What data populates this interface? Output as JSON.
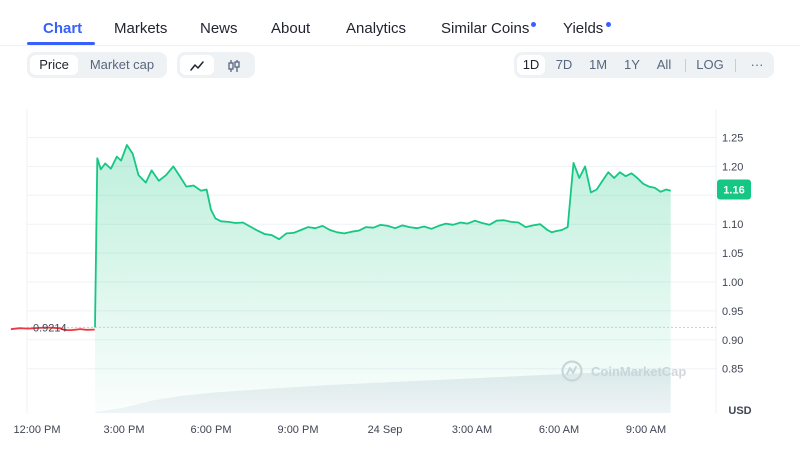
{
  "tabs": [
    {
      "label": "Chart",
      "active": true,
      "dot": false
    },
    {
      "label": "Markets",
      "active": false,
      "dot": false
    },
    {
      "label": "News",
      "active": false,
      "dot": false
    },
    {
      "label": "About",
      "active": false,
      "dot": false
    },
    {
      "label": "Analytics",
      "active": false,
      "dot": false
    },
    {
      "label": "Similar Coins",
      "active": false,
      "dot": true
    },
    {
      "label": "Yields",
      "active": false,
      "dot": true
    }
  ],
  "toolbar": {
    "metric_options": [
      "Price",
      "Market cap"
    ],
    "metric_selected": "Price",
    "chart_style_icons": [
      "line-chart-icon",
      "candlestick-icon"
    ],
    "chart_style_selected": "line-chart-icon",
    "ranges": [
      "1D",
      "7D",
      "1M",
      "1Y",
      "All"
    ],
    "range_selected": "1D",
    "log_label": "LOG",
    "more_label": "···"
  },
  "colors": {
    "accent": "#3861fb",
    "up": "#16c784",
    "down": "#ea3943",
    "grid": "#eff2f5"
  },
  "chart_data": {
    "type": "line",
    "open_price_label": "0.9214",
    "open_price": 0.9214,
    "current_price_label": "1.16",
    "current_price": 1.16,
    "currency_label": "USD",
    "watermark": "CoinMarketCap",
    "ylim": [
      0.8,
      1.28
    ],
    "y_ticks": [
      "1.25",
      "1.20",
      "1.15",
      "1.10",
      "1.05",
      "1.00",
      "0.95",
      "0.90",
      "0.85"
    ],
    "y_tick_values": [
      1.25,
      1.2,
      1.15,
      1.1,
      1.05,
      1.0,
      0.95,
      0.9,
      0.85
    ],
    "x_ticks": [
      "12:00 PM",
      "3:00 PM",
      "6:00 PM",
      "9:00 PM",
      "24 Sep",
      "3:00 AM",
      "6:00 AM",
      "9:00 AM"
    ],
    "x_tick_hours": [
      0,
      3,
      6,
      9,
      12,
      15,
      18,
      21
    ],
    "x_range_hours": [
      -1.6,
      21.85
    ],
    "series": [
      {
        "color": "down",
        "x": [
          -0.9,
          -0.6,
          -0.3,
          0.1,
          0.4,
          0.8,
          0.95,
          1.2,
          1.5,
          1.7,
          1.99
        ],
        "y": [
          0.9183,
          0.9201,
          0.9194,
          0.9206,
          0.9212,
          0.9199,
          0.9168,
          0.9168,
          0.9185,
          0.9172,
          0.9177
        ]
      },
      {
        "color": "up",
        "x": [
          2.0,
          2.08,
          2.2,
          2.35,
          2.55,
          2.75,
          2.9,
          3.1,
          3.3,
          3.5,
          3.75,
          3.95,
          4.2,
          4.45,
          4.7,
          4.9,
          5.15,
          5.4,
          5.65,
          5.85,
          6.0,
          6.15,
          6.35,
          6.6,
          6.85,
          7.1,
          7.35,
          7.6,
          7.85,
          8.1,
          8.35,
          8.6,
          8.85,
          9.1,
          9.35,
          9.6,
          9.85,
          10.1,
          10.35,
          10.6,
          10.85,
          11.1,
          11.35,
          11.6,
          11.85,
          12.1,
          12.35,
          12.6,
          12.85,
          13.1,
          13.35,
          13.6,
          13.85,
          14.1,
          14.35,
          14.6,
          14.85,
          15.1,
          15.35,
          15.6,
          15.85,
          16.1,
          16.35,
          16.6,
          16.85,
          17.1,
          17.35,
          17.6,
          17.75,
          17.9,
          18.1,
          18.3,
          18.5,
          18.7,
          18.9,
          19.1,
          19.3,
          19.5,
          19.7,
          19.9,
          20.1,
          20.3,
          20.5,
          20.7,
          20.9,
          21.1,
          21.3,
          21.5,
          21.7,
          21.85
        ],
        "y": [
          0.9214,
          1.214,
          1.195,
          1.205,
          1.196,
          1.217,
          1.21,
          1.237,
          1.222,
          1.185,
          1.172,
          1.193,
          1.175,
          1.185,
          1.2,
          1.185,
          1.165,
          1.167,
          1.158,
          1.16,
          1.125,
          1.11,
          1.105,
          1.104,
          1.102,
          1.103,
          1.096,
          1.089,
          1.083,
          1.081,
          1.074,
          1.084,
          1.085,
          1.09,
          1.095,
          1.093,
          1.097,
          1.09,
          1.086,
          1.084,
          1.087,
          1.089,
          1.095,
          1.094,
          1.099,
          1.097,
          1.093,
          1.098,
          1.095,
          1.093,
          1.096,
          1.092,
          1.097,
          1.101,
          1.099,
          1.103,
          1.101,
          1.106,
          1.102,
          1.099,
          1.106,
          1.107,
          1.104,
          1.103,
          1.095,
          1.098,
          1.1,
          1.09,
          1.086,
          1.088,
          1.09,
          1.095,
          1.206,
          1.18,
          1.2,
          1.155,
          1.16,
          1.175,
          1.19,
          1.18,
          1.19,
          1.183,
          1.188,
          1.18,
          1.17,
          1.165,
          1.163,
          1.156,
          1.16,
          1.158
        ]
      }
    ],
    "volume_profile": {
      "x": [
        2.0,
        3.0,
        4.0,
        5.0,
        6.0,
        8.0,
        10.0,
        12.0,
        14.0,
        16.0,
        18.0,
        20.0,
        21.85
      ],
      "v": [
        0.02,
        0.12,
        0.28,
        0.38,
        0.45,
        0.54,
        0.62,
        0.68,
        0.74,
        0.8,
        0.86,
        0.92,
        0.96
      ]
    }
  }
}
